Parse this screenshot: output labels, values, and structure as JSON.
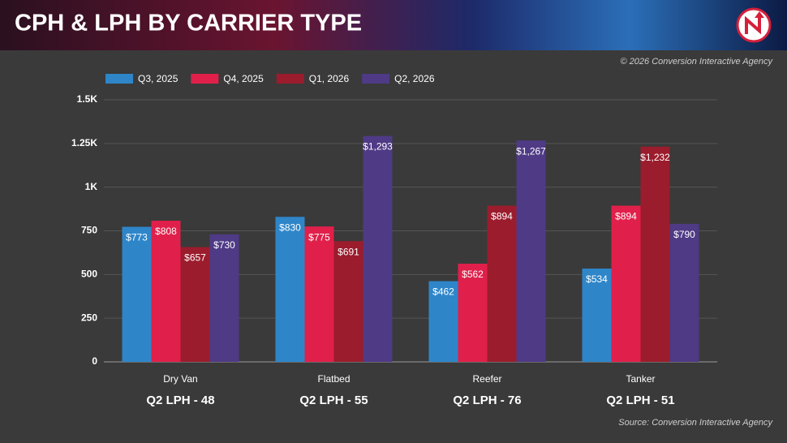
{
  "chart_data": {
    "type": "bar",
    "title": "CPH & LPH BY CARRIER TYPE",
    "copyright": "© 2026 Conversion Interactive Agency",
    "source": "Source: Conversion Interactive Agency",
    "categories": [
      "Dry Van",
      "Flatbed",
      "Reefer",
      "Tanker"
    ],
    "category_notes": [
      "Q2 LPH - 48",
      "Q2 LPH - 55",
      "Q2 LPH - 76",
      "Q2 LPH - 51"
    ],
    "series": [
      {
        "name": "Q3, 2025",
        "color": "#2e86c9",
        "values": [
          773,
          830,
          462,
          534
        ],
        "value_labels": [
          "$773",
          "$830",
          "$462",
          "$534"
        ]
      },
      {
        "name": "Q4, 2025",
        "color": "#e0204a",
        "values": [
          808,
          775,
          562,
          894
        ],
        "value_labels": [
          "$808",
          "$775",
          "$562",
          "$894"
        ]
      },
      {
        "name": "Q1, 2026",
        "color": "#9b1c2c",
        "values": [
          657,
          691,
          894,
          1232
        ],
        "value_labels": [
          "$657",
          "$691",
          "$894",
          "$1,232"
        ]
      },
      {
        "name": "Q2, 2026",
        "color": "#4f3a86",
        "values": [
          730,
          1293,
          1267,
          790
        ],
        "value_labels": [
          "$730",
          "$1,293",
          "$1,267",
          "$790"
        ]
      }
    ],
    "ylim": [
      0,
      1500
    ],
    "yticks": [
      0,
      250,
      500,
      750,
      {
        "value": 1000,
        "label": "1K"
      },
      {
        "value": 1250,
        "label": "1.25K"
      },
      {
        "value": 1500,
        "label": "1.5K"
      }
    ],
    "grid": true,
    "legend": "top-left"
  }
}
